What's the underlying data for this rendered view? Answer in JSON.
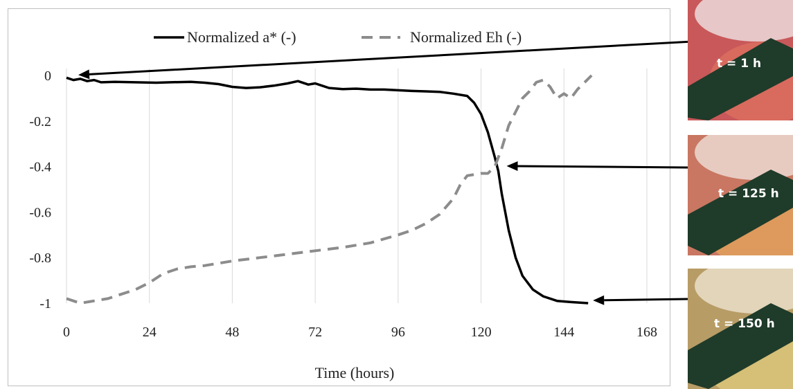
{
  "chart_data": {
    "type": "line",
    "xlabel": "Time (hours)",
    "ylabel": "",
    "xlim": [
      0,
      168
    ],
    "ylim": [
      -1,
      0
    ],
    "x_ticks": [
      0,
      24,
      48,
      72,
      96,
      120,
      144,
      168
    ],
    "y_ticks": [
      0,
      -0.2,
      -0.4,
      -0.6,
      -0.8,
      -1
    ],
    "grid": "vertical",
    "legend_position": "top",
    "series": [
      {
        "name": "Normalized a* (-)",
        "style": "solid",
        "color": "#000000",
        "points": [
          [
            0,
            -0.01
          ],
          [
            2,
            -0.02
          ],
          [
            4,
            -0.015
          ],
          [
            6,
            -0.025
          ],
          [
            8,
            -0.02
          ],
          [
            10,
            -0.03
          ],
          [
            14,
            -0.028
          ],
          [
            20,
            -0.03
          ],
          [
            26,
            -0.032
          ],
          [
            30,
            -0.03
          ],
          [
            36,
            -0.028
          ],
          [
            40,
            -0.032
          ],
          [
            44,
            -0.038
          ],
          [
            48,
            -0.05
          ],
          [
            52,
            -0.055
          ],
          [
            56,
            -0.052
          ],
          [
            60,
            -0.045
          ],
          [
            64,
            -0.035
          ],
          [
            67,
            -0.025
          ],
          [
            70,
            -0.04
          ],
          [
            72,
            -0.035
          ],
          [
            74,
            -0.045
          ],
          [
            76,
            -0.055
          ],
          [
            80,
            -0.06
          ],
          [
            84,
            -0.058
          ],
          [
            88,
            -0.062
          ],
          [
            92,
            -0.062
          ],
          [
            96,
            -0.065
          ],
          [
            100,
            -0.068
          ],
          [
            104,
            -0.07
          ],
          [
            108,
            -0.072
          ],
          [
            112,
            -0.08
          ],
          [
            116,
            -0.09
          ],
          [
            118,
            -0.12
          ],
          [
            120,
            -0.17
          ],
          [
            122,
            -0.25
          ],
          [
            124,
            -0.36
          ],
          [
            125,
            -0.42
          ],
          [
            126,
            -0.52
          ],
          [
            128,
            -0.68
          ],
          [
            130,
            -0.8
          ],
          [
            132,
            -0.88
          ],
          [
            135,
            -0.94
          ],
          [
            138,
            -0.97
          ],
          [
            142,
            -0.99
          ],
          [
            146,
            -0.995
          ],
          [
            151,
            -1.0
          ]
        ]
      },
      {
        "name": "Normalized Eh (-)",
        "style": "dashed",
        "color": "#8c8c8c",
        "points": [
          [
            0,
            -0.98
          ],
          [
            4,
            -1.0
          ],
          [
            8,
            -0.99
          ],
          [
            12,
            -0.98
          ],
          [
            16,
            -0.96
          ],
          [
            20,
            -0.94
          ],
          [
            24,
            -0.91
          ],
          [
            28,
            -0.87
          ],
          [
            32,
            -0.85
          ],
          [
            36,
            -0.84
          ],
          [
            40,
            -0.835
          ],
          [
            44,
            -0.825
          ],
          [
            48,
            -0.815
          ],
          [
            56,
            -0.8
          ],
          [
            64,
            -0.785
          ],
          [
            72,
            -0.77
          ],
          [
            80,
            -0.755
          ],
          [
            88,
            -0.735
          ],
          [
            96,
            -0.7
          ],
          [
            100,
            -0.68
          ],
          [
            104,
            -0.65
          ],
          [
            108,
            -0.61
          ],
          [
            112,
            -0.54
          ],
          [
            114,
            -0.48
          ],
          [
            116,
            -0.44
          ],
          [
            120,
            -0.43
          ],
          [
            122,
            -0.43
          ],
          [
            124,
            -0.4
          ],
          [
            126,
            -0.32
          ],
          [
            128,
            -0.22
          ],
          [
            130,
            -0.16
          ],
          [
            132,
            -0.1
          ],
          [
            134,
            -0.07
          ],
          [
            136,
            -0.03
          ],
          [
            138,
            -0.02
          ],
          [
            140,
            -0.05
          ],
          [
            142,
            -0.1
          ],
          [
            144,
            -0.08
          ],
          [
            146,
            -0.1
          ],
          [
            148,
            -0.06
          ],
          [
            150,
            -0.03
          ],
          [
            152,
            0.0
          ]
        ]
      }
    ],
    "annotations": [
      {
        "label": "t = 1 h",
        "x": 1,
        "y": -0.01
      },
      {
        "label": "t = 125 h",
        "x": 125,
        "y": -0.41
      },
      {
        "label": "t = 150 h",
        "x": 150,
        "y": -1.0
      }
    ]
  },
  "colors": {
    "photo_1": "#d9675c",
    "photo_2": "#d78a5a",
    "photo_3": "#c4a96a",
    "sensor": "#1f3b2a"
  }
}
